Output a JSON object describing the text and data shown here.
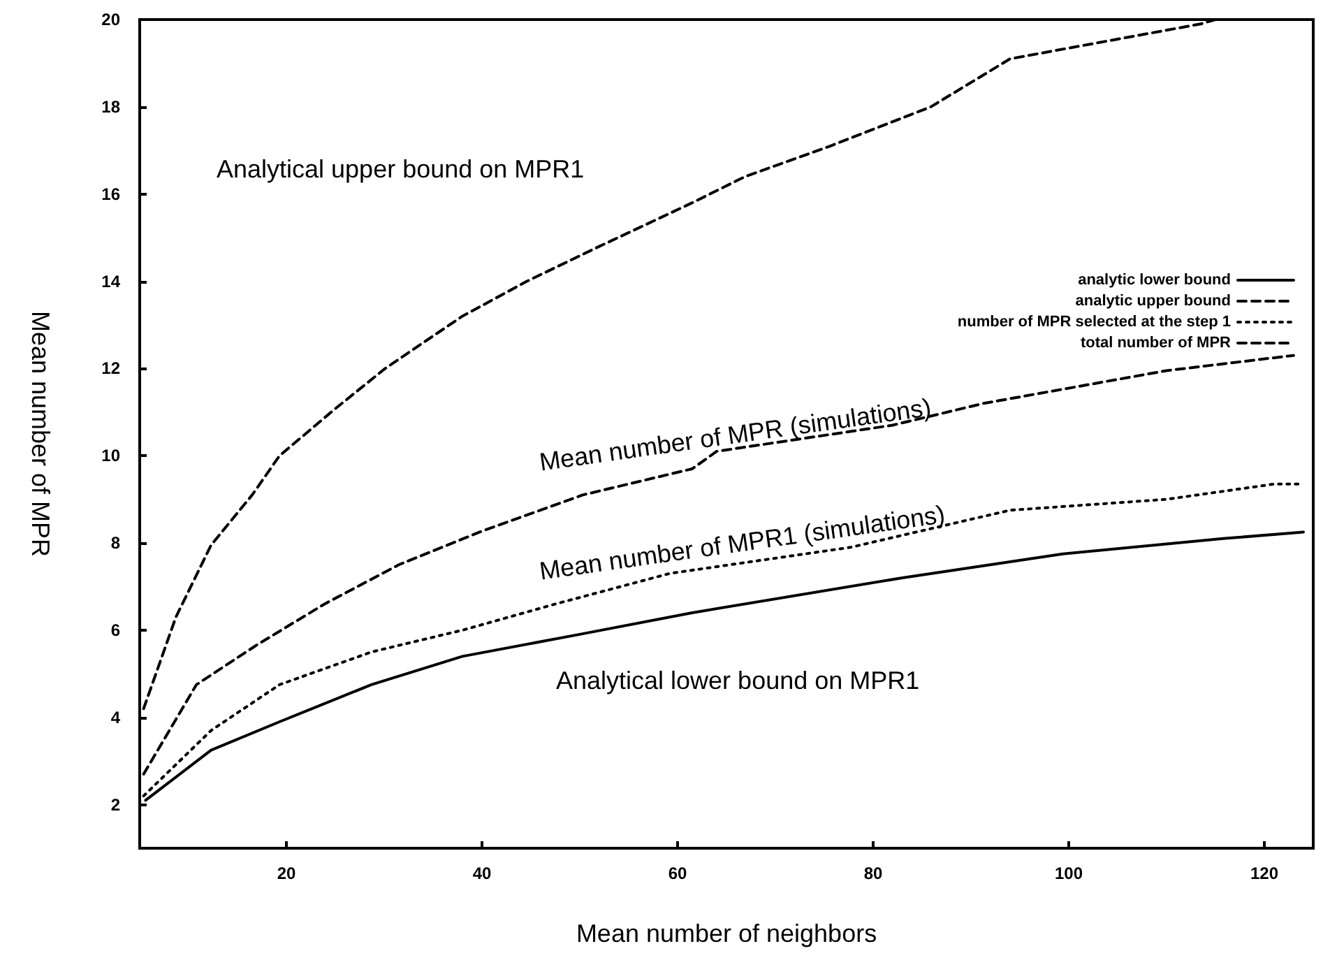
{
  "chart_data": {
    "type": "line",
    "xlabel": "Mean number of neighbors",
    "ylabel": "Mean number of MPR",
    "xlim": [
      5,
      125
    ],
    "xticks": [
      20,
      40,
      60,
      80,
      100,
      120
    ],
    "ylim": [
      1,
      20
    ],
    "yticks": [
      2,
      4,
      6,
      8,
      10,
      12,
      14,
      16,
      18,
      20
    ],
    "grid": false,
    "legend": "top right",
    "series": [
      {
        "name": "analytic lower bound",
        "color": "#000000",
        "line_style": "solid",
        "x": [
          5.6,
          12.3,
          19.3,
          28.7,
          38,
          49.9,
          61.5,
          83,
          99.4,
          115.8,
          124
        ],
        "values": [
          2.1,
          3.25,
          3.9,
          4.75,
          5.4,
          5.9,
          6.4,
          7.2,
          7.75,
          8.1,
          8.25
        ]
      },
      {
        "name": "analytic upper bound",
        "color": "#000000",
        "line_style": "dashed",
        "x": [
          5.4,
          8.7,
          12.3,
          16.5,
          19.3,
          24.9,
          30.1,
          38,
          44.6,
          52,
          61.5,
          66.9,
          75.6,
          85.9,
          94,
          113.5,
          115
        ],
        "values": [
          4.2,
          6.3,
          7.95,
          9.1,
          10,
          11.06,
          12,
          13.2,
          14,
          14.8,
          15.8,
          16.4,
          17.1,
          18,
          19.1,
          19.9,
          20
        ]
      },
      {
        "name": "number of MPR selected at the step 1",
        "color": "#000000",
        "line_style": "dotted",
        "x": [
          5.4,
          12.3,
          19.3,
          28.7,
          38,
          47.5,
          59.2,
          77.7,
          94,
          110,
          121,
          123.8
        ],
        "values": [
          2.2,
          3.7,
          4.75,
          5.5,
          6,
          6.6,
          7.3,
          7.9,
          8.75,
          9,
          9.35,
          9.35
        ]
      },
      {
        "name": "total number of MPR",
        "color": "#000000",
        "line_style": "dashed",
        "x": [
          5.4,
          10.8,
          16.9,
          23.9,
          31.5,
          40,
          50.3,
          61.5,
          64,
          82,
          91.3,
          110,
          123
        ],
        "values": [
          2.7,
          4.75,
          5.65,
          6.6,
          7.5,
          8.27,
          9.1,
          9.7,
          10.1,
          10.7,
          11.2,
          11.95,
          12.3
        ]
      }
    ],
    "annotations": [
      "Analytical upper bound on MPR1",
      "Mean number of MPR (simulations)",
      "Mean number of MPR1 (simulations)",
      "Analytical lower bound on MPR1"
    ]
  }
}
